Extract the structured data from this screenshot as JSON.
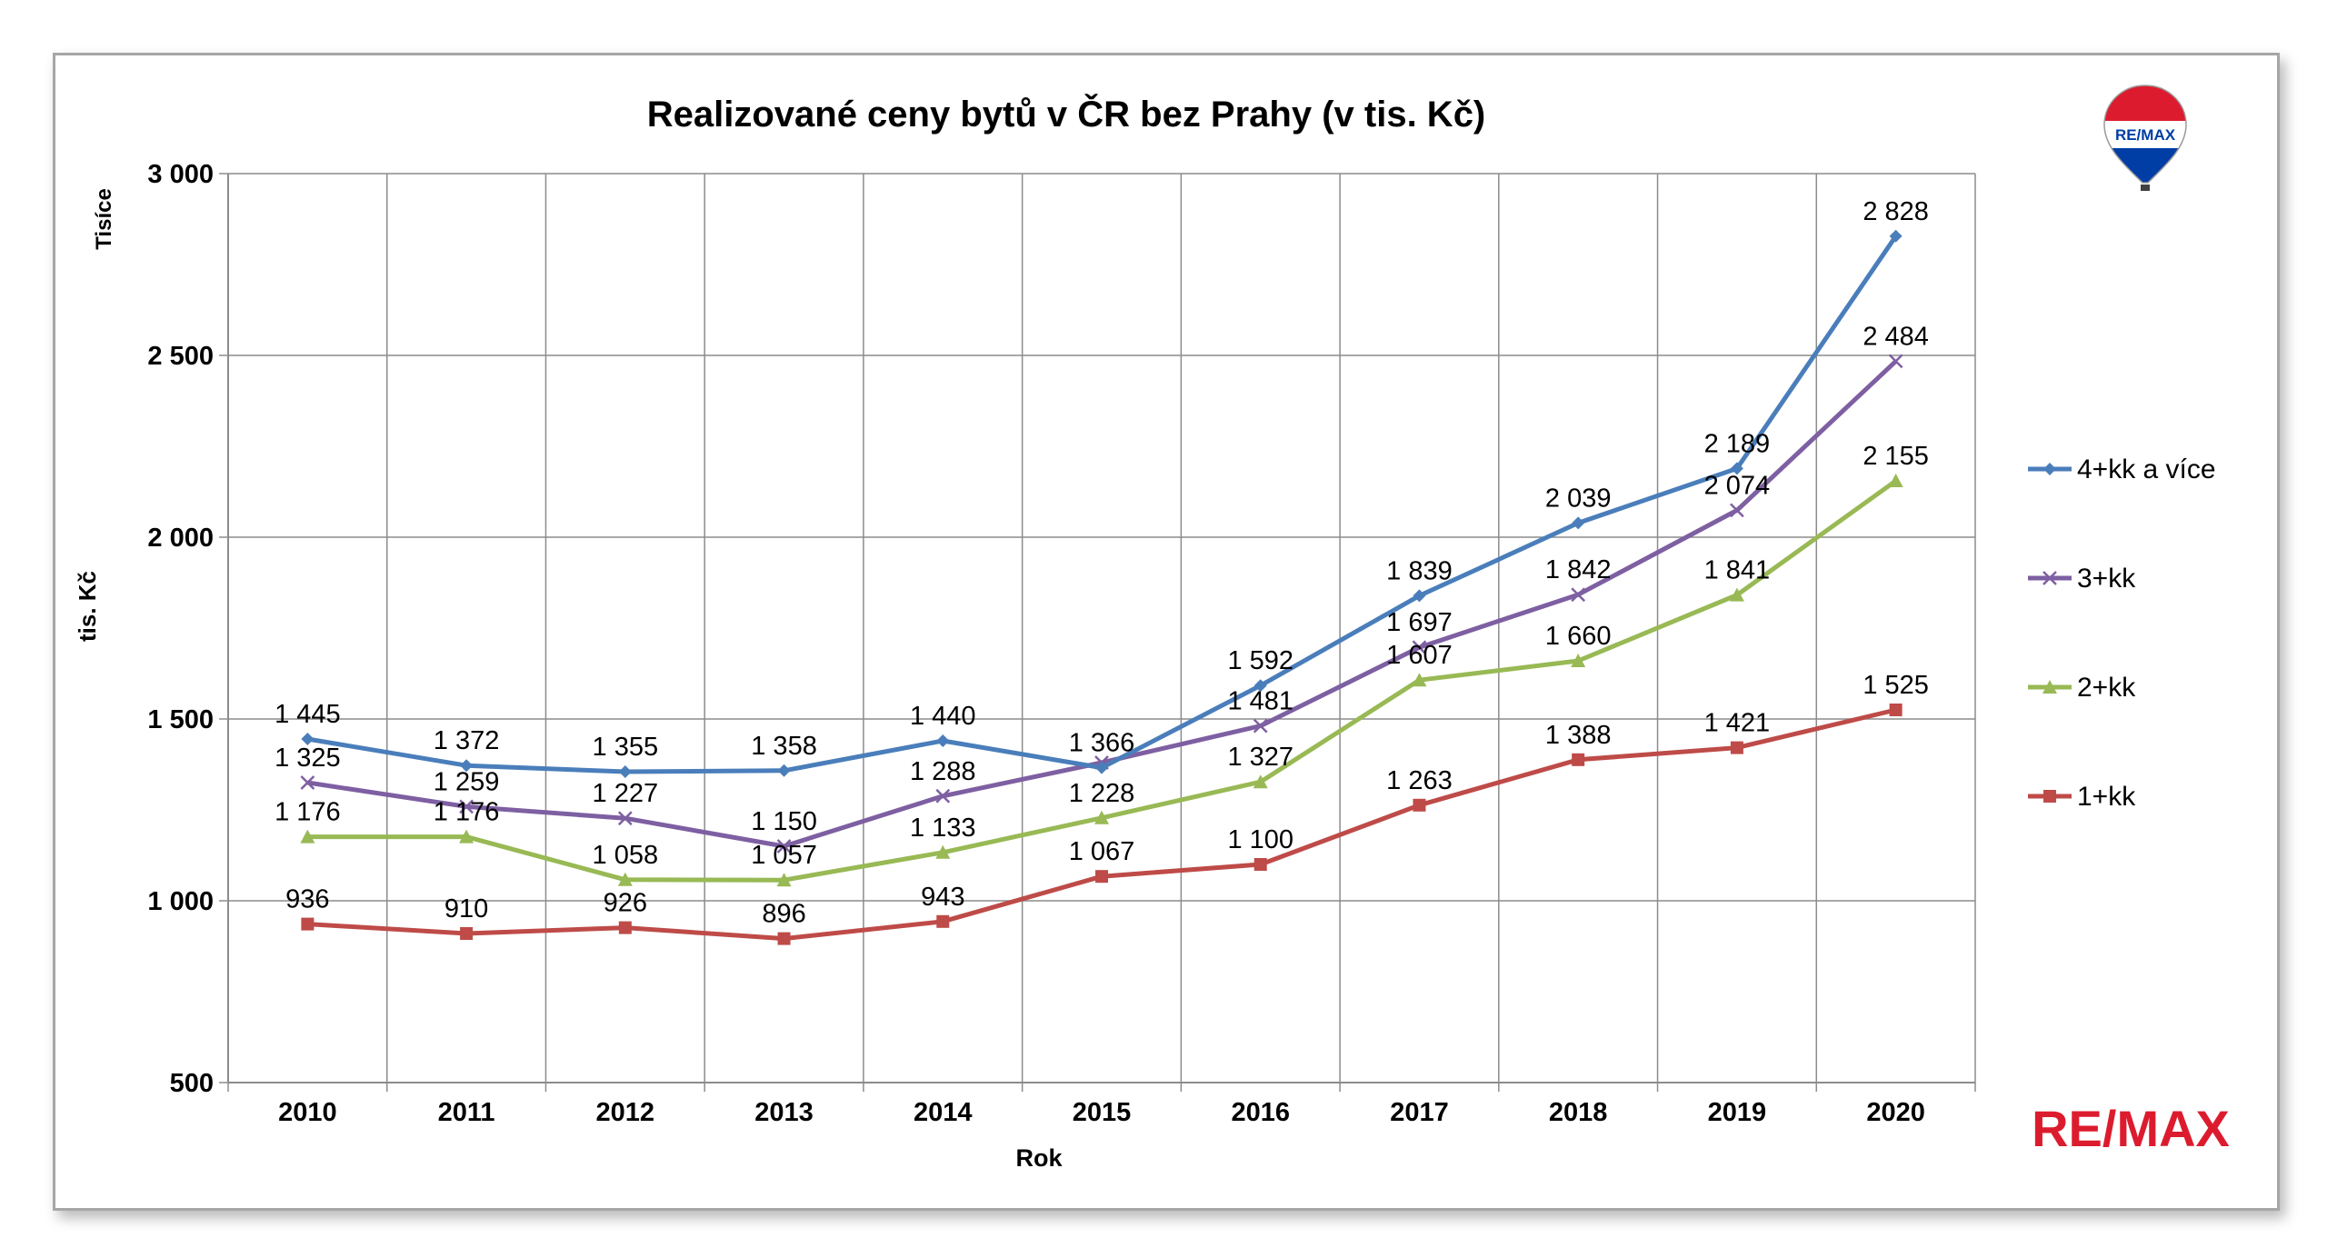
{
  "chart_data": {
    "type": "line",
    "title": "Realizované ceny bytů v ČR bez Prahy (v tis. Kč)",
    "xlabel": "Rok",
    "ylabel": "tis. Kč",
    "y_unit_label": "Tisíce",
    "ylim": [
      500,
      3000
    ],
    "yticks": [
      500,
      1000,
      1500,
      2000,
      2500,
      3000
    ],
    "ytick_labels": [
      "500",
      "1 000",
      "1 500",
      "2 000",
      "2 500",
      "3 000"
    ],
    "categories": [
      "2010",
      "2011",
      "2012",
      "2013",
      "2014",
      "2015",
      "2016",
      "2017",
      "2018",
      "2019",
      "2020"
    ],
    "grid": true,
    "legend": "right",
    "series": [
      {
        "name": "4+kk a více",
        "color": "#4a7ebb",
        "marker": "diamond",
        "values": [
          1445,
          1372,
          1355,
          1358,
          1440,
          1366,
          1592,
          1839,
          2039,
          2189,
          2828
        ],
        "labels": [
          "1 445",
          "1 372",
          "1 355",
          "1 358",
          "1 440",
          "1 366",
          "1 592",
          "1 839",
          "2 039",
          "2 189",
          "2 828"
        ]
      },
      {
        "name": "3+kk",
        "color": "#7e5fa2",
        "marker": "x",
        "values": [
          1325,
          1259,
          1227,
          1150,
          1288,
          1380,
          1481,
          1697,
          1842,
          2074,
          2484
        ],
        "labels": [
          "1 325",
          "1 259",
          "1 227",
          "1 150",
          "1 288",
          "",
          "1 481",
          "1 697",
          "1 842",
          "2 074",
          "2 484"
        ]
      },
      {
        "name": "2+kk",
        "color": "#98b954",
        "marker": "triangle",
        "values": [
          1176,
          1176,
          1058,
          1057,
          1133,
          1228,
          1327,
          1607,
          1660,
          1841,
          2155
        ],
        "labels": [
          "1 176",
          "1 176",
          "1 058",
          "1 057",
          "1 133",
          "1 228",
          "1 327",
          "1 607",
          "1 660",
          "1 841",
          "2 155"
        ]
      },
      {
        "name": "1+kk",
        "color": "#be4b48",
        "marker": "square",
        "values": [
          936,
          910,
          926,
          896,
          943,
          1067,
          1100,
          1263,
          1388,
          1421,
          1525
        ],
        "labels": [
          "936",
          "910",
          "926",
          "896",
          "943",
          "1 067",
          "1 100",
          "1 263",
          "1 388",
          "1 421",
          "1 525"
        ]
      }
    ]
  },
  "branding": {
    "logo_text": "RE/MAX",
    "balloon_text": "RE/MAX",
    "red": "#dc1c2e",
    "blue": "#003da5"
  }
}
